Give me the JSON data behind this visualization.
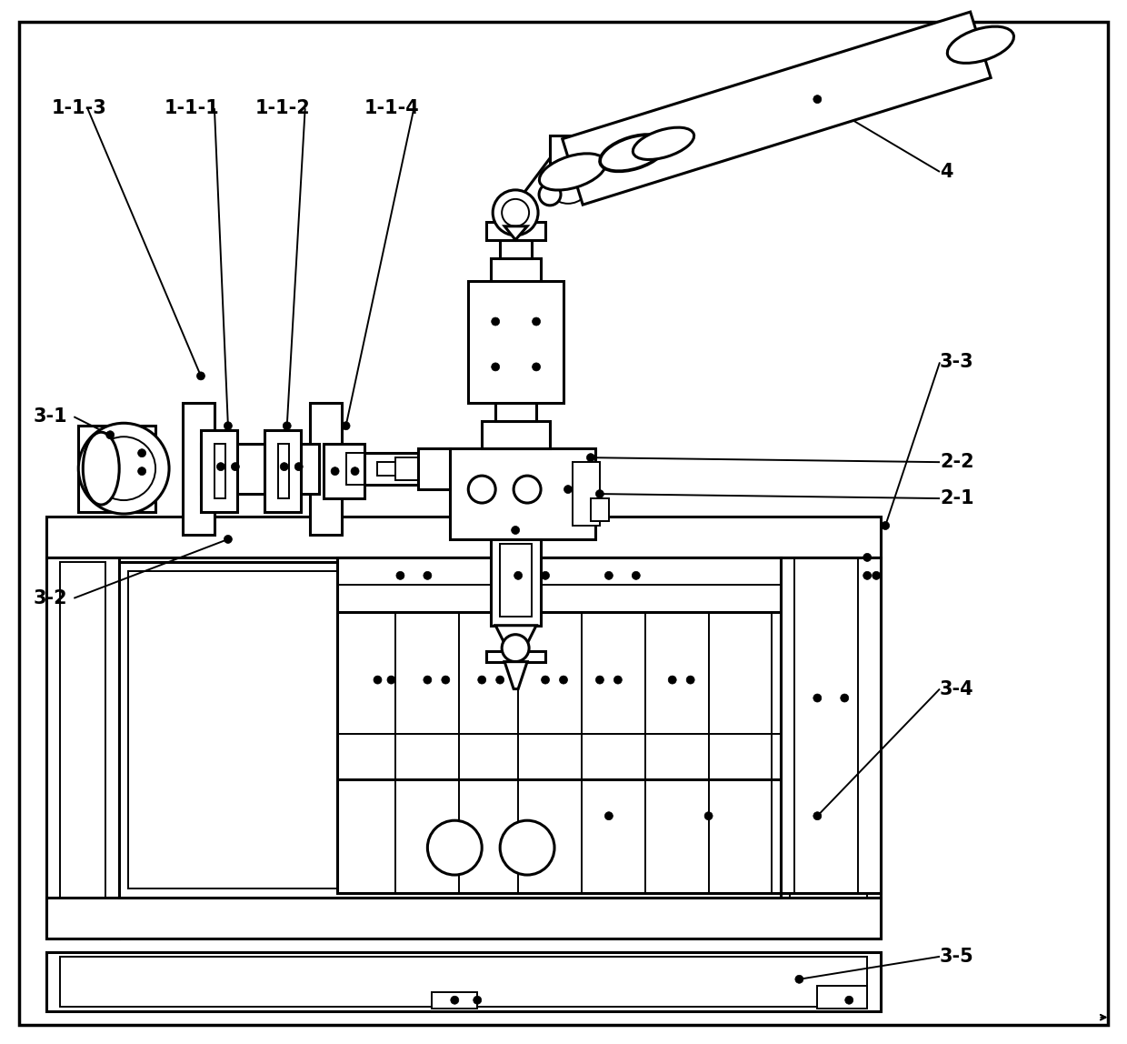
{
  "bg_color": "#ffffff",
  "lw": 2.2,
  "tlw": 1.4,
  "fig_w": 12.4,
  "fig_h": 11.48,
  "dpi": 100
}
